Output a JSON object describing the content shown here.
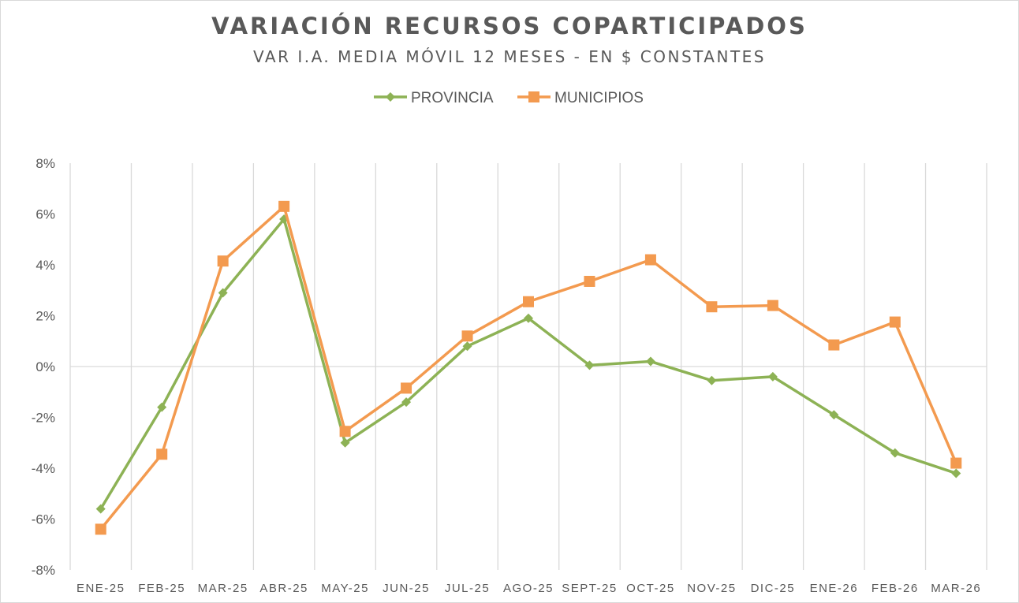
{
  "chart_data": {
    "type": "line",
    "title": "VARIACIÓN RECURSOS COPARTICIPADOS",
    "subtitle": "VAR I.A. MEDIA MÓVIL 12 MESES - EN $ CONSTANTES",
    "xlabel": "",
    "ylabel": "",
    "categories": [
      "ENE-25",
      "FEB-25",
      "MAR-25",
      "ABR-25",
      "MAY-25",
      "JUN-25",
      "JUL-25",
      "AGO-25",
      "SEPT-25",
      "OCT-25",
      "NOV-25",
      "DIC-25",
      "ENE-26",
      "FEB-26",
      "MAR-26"
    ],
    "ylim": [
      -8,
      8
    ],
    "yticks": [
      -8,
      -6,
      -4,
      -2,
      0,
      2,
      4,
      6,
      8
    ],
    "ytick_labels": [
      "-8%",
      "-6%",
      "-4%",
      "-2%",
      "0%",
      "2%",
      "4%",
      "6%",
      "8%"
    ],
    "legend_position": "top-center",
    "grid": "vertical",
    "series": [
      {
        "name": "PROVINCIA",
        "color": "#8db255",
        "marker": "diamond",
        "values": [
          -5.6,
          -1.6,
          2.9,
          5.8,
          -3.0,
          -1.4,
          0.8,
          1.9,
          0.05,
          0.2,
          -0.55,
          -0.4,
          -1.9,
          -3.4,
          -4.2
        ]
      },
      {
        "name": "MUNICIPIOS",
        "color": "#f39a4f",
        "marker": "square",
        "values": [
          -6.4,
          -3.45,
          4.15,
          6.3,
          -2.55,
          -0.85,
          1.2,
          2.55,
          3.35,
          4.2,
          2.35,
          2.4,
          0.85,
          1.75,
          -3.8
        ]
      }
    ]
  }
}
